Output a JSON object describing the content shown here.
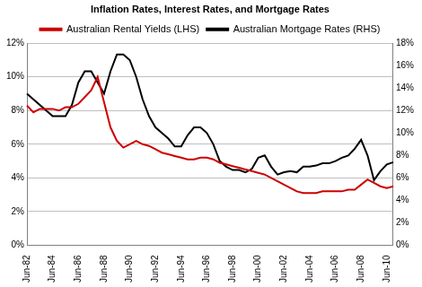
{
  "chart_data": {
    "type": "line",
    "title": "Inflation Rates, Interest Rates, and Mortgage Rates",
    "categories": [
      "Jun-82",
      null,
      null,
      null,
      "Jun-84",
      null,
      null,
      null,
      "Jun-86",
      null,
      null,
      null,
      "Jun-88",
      null,
      null,
      null,
      "Jun-90",
      null,
      null,
      null,
      "Jun-92",
      null,
      null,
      null,
      "Jun-94",
      null,
      null,
      null,
      "Jun-96",
      null,
      null,
      null,
      "Jun-98",
      null,
      null,
      null,
      "Jun-00",
      null,
      null,
      null,
      "Jun-02",
      null,
      null,
      null,
      "Jun-04",
      null,
      null,
      null,
      "Jun-06",
      null,
      null,
      null,
      "Jun-08",
      null,
      null,
      null,
      "Jun-10",
      null
    ],
    "series": [
      {
        "name": "Australian Rental Yields (LHS)",
        "color": "#cc0000",
        "values": [
          8.3,
          7.9,
          8.1,
          8.1,
          8.1,
          8.0,
          8.2,
          8.2,
          8.4,
          8.8,
          9.2,
          10.0,
          8.5,
          7.0,
          6.2,
          5.8,
          6.0,
          6.2,
          6.0,
          5.9,
          5.7,
          5.5,
          5.4,
          5.3,
          5.2,
          5.1,
          5.1,
          5.2,
          5.2,
          5.1,
          4.9,
          4.8,
          4.7,
          4.6,
          4.5,
          4.4,
          4.3,
          4.2,
          4.0,
          3.8,
          3.6,
          3.4,
          3.2,
          3.1,
          3.1,
          3.1,
          3.2,
          3.2,
          3.2,
          3.2,
          3.3,
          3.3,
          3.6,
          3.9,
          3.7,
          3.5,
          3.4,
          3.5
        ]
      },
      {
        "name": "Australian Mortgage Rates (RHS)",
        "color": "#000000",
        "axis": "y2",
        "values": [
          13.5,
          13.0,
          12.5,
          12.0,
          11.5,
          11.5,
          11.5,
          12.5,
          14.5,
          15.5,
          15.5,
          14.5,
          13.5,
          15.5,
          17.0,
          17.0,
          16.5,
          15.0,
          13.0,
          11.5,
          10.5,
          10.0,
          9.5,
          8.8,
          8.8,
          9.8,
          10.5,
          10.5,
          10.0,
          9.0,
          7.5,
          7.0,
          6.7,
          6.7,
          6.5,
          6.8,
          7.8,
          8.0,
          7.0,
          6.3,
          6.5,
          6.6,
          6.5,
          7.0,
          7.0,
          7.1,
          7.3,
          7.3,
          7.5,
          7.8,
          8.0,
          8.6,
          9.4,
          8.0,
          5.8,
          6.6,
          7.2,
          7.4
        ]
      }
    ],
    "ylim": [
      0,
      12
    ],
    "yticks": [
      {
        "value": 0,
        "label": "0%"
      },
      {
        "value": 2,
        "label": "2%"
      },
      {
        "value": 4,
        "label": "4%"
      },
      {
        "value": 6,
        "label": "6%"
      },
      {
        "value": 8,
        "label": "8%"
      },
      {
        "value": 10,
        "label": "10%"
      },
      {
        "value": 12,
        "label": "12%"
      }
    ],
    "y2lim": [
      0,
      18
    ],
    "y2ticks": [
      {
        "value": 0,
        "label": "0%"
      },
      {
        "value": 2,
        "label": "2%"
      },
      {
        "value": 4,
        "label": "4%"
      },
      {
        "value": 6,
        "label": "6%"
      },
      {
        "value": 8,
        "label": "8%"
      },
      {
        "value": 10,
        "label": "10%"
      },
      {
        "value": 12,
        "label": "12%"
      },
      {
        "value": 14,
        "label": "14%"
      },
      {
        "value": 16,
        "label": "16%"
      },
      {
        "value": 18,
        "label": "18%"
      }
    ],
    "grid": true,
    "legend": "top"
  }
}
